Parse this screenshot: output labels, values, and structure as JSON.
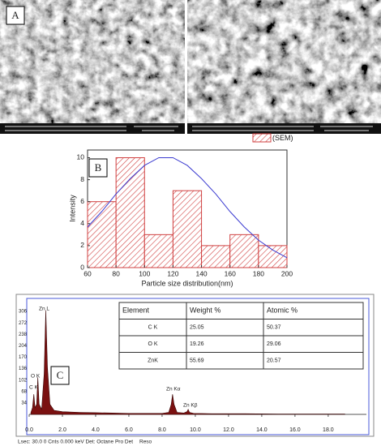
{
  "panel_labels": [
    "A",
    "B",
    "C"
  ],
  "chart_data": [
    {
      "type": "histogram",
      "bins": [
        60,
        80,
        100,
        120,
        140,
        160,
        180,
        200
      ],
      "counts": [
        6,
        10,
        3,
        7,
        2,
        3,
        2
      ],
      "color": "#d04040",
      "xlim": [
        60,
        200
      ],
      "xticks": [
        60,
        80,
        100,
        120,
        140,
        160,
        180,
        200
      ],
      "ylim": [
        0,
        10.7
      ],
      "yticks": [
        0,
        2,
        4,
        6,
        8,
        10
      ],
      "xlabel": "Particle size distribution(nm)",
      "ylabel": "Intensity",
      "legend": "(SEM)",
      "fit": {
        "color": "#3a3ad0",
        "x": [
          60,
          70,
          80,
          90,
          100,
          110,
          120,
          130,
          140,
          150,
          160,
          170,
          180,
          190,
          200
        ],
        "values": [
          3.7,
          5.1,
          6.7,
          8.1,
          9.3,
          10.0,
          10.0,
          9.3,
          8.1,
          6.7,
          5.1,
          3.7,
          2.5,
          1.6,
          0.9
        ]
      }
    },
    {
      "type": "area",
      "x": [
        0.1,
        0.2,
        0.28,
        0.35,
        0.45,
        0.52,
        0.6,
        0.75,
        0.9,
        1.0,
        1.1,
        1.25,
        1.5,
        2,
        3,
        4,
        5,
        6,
        7,
        8,
        8.4,
        8.55,
        8.63,
        8.72,
        8.9,
        9.3,
        9.5,
        9.57,
        9.65,
        9.9,
        11,
        13,
        15,
        17,
        19
      ],
      "values": [
        5,
        20,
        60,
        20,
        30,
        110,
        30,
        15,
        120,
        310,
        140,
        30,
        12,
        8,
        6,
        5,
        4,
        3,
        3,
        3,
        6,
        30,
        60,
        30,
        6,
        4,
        8,
        15,
        6,
        3,
        2,
        2,
        1,
        1,
        1
      ],
      "color": "#7a1010",
      "xlim": [
        0,
        20.3
      ],
      "xticks": [
        {
          "value": 0,
          "label": "0.0"
        },
        {
          "value": 2,
          "label": "2.0"
        },
        {
          "value": 4,
          "label": "4.0"
        },
        {
          "value": 6,
          "label": "6.0"
        },
        {
          "value": 8,
          "label": "8.0"
        },
        {
          "value": 10,
          "label": "10.0"
        },
        {
          "value": 12,
          "label": "12.0"
        },
        {
          "value": 14,
          "label": "14.0"
        },
        {
          "value": 16,
          "label": "16.0"
        },
        {
          "value": 18,
          "label": "18.0"
        }
      ],
      "ylim": [
        0,
        328
      ],
      "yticks": [
        34,
        68,
        102,
        136,
        170,
        204,
        238,
        272,
        306
      ],
      "annotations": [
        "Zn L",
        "O K",
        "C K",
        "Zn Kα",
        "Zn Kβ"
      ],
      "footer": [
        "Lsec: 30.0 0 Cnts 0.000 keV Det: Octane Pro Det",
        "Reso"
      ]
    }
  ],
  "table": {
    "header": [
      "Element",
      "Weight %",
      "Atomic %"
    ],
    "rows": [
      [
        "C K",
        "25.05",
        "50.37"
      ],
      [
        "O K",
        "19.26",
        "29.06"
      ],
      [
        "ZnK",
        "55.69",
        "20.57"
      ]
    ]
  }
}
